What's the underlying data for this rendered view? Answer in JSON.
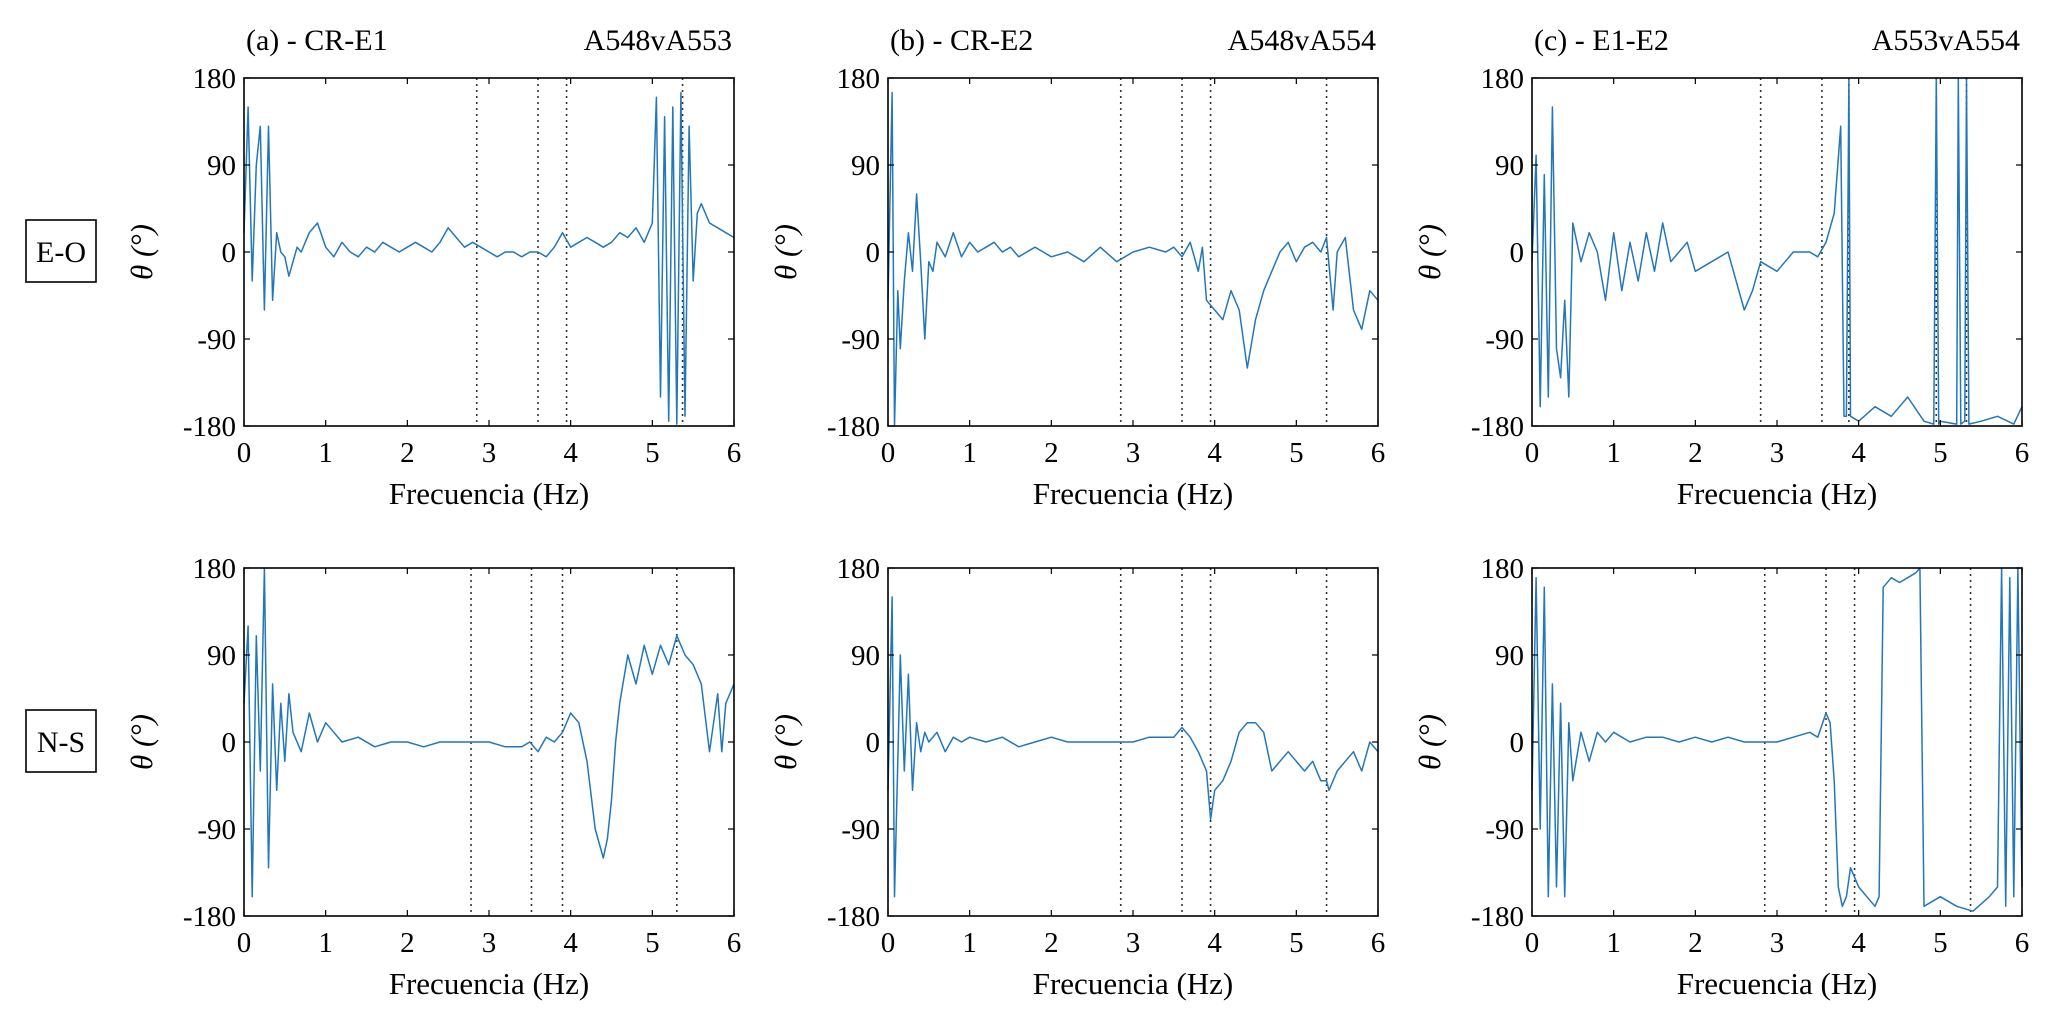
{
  "figure": {
    "row_labels": [
      "E-O",
      "N-S"
    ],
    "series_color": "#2277bb",
    "panels_titles": [
      {
        "left": "(a) - CR-E1",
        "right": "A548vA553"
      },
      {
        "left": "(b) - CR-E2",
        "right": "A548vA554"
      },
      {
        "left": "(c) - E1-E2",
        "right": "A553vA554"
      }
    ]
  },
  "chart_data": [
    {
      "type": "line",
      "panel": "a-EO",
      "title_left": "(a) - CR-E1",
      "title_right": "A548vA553",
      "xlabel": "Frecuencia (Hz)",
      "ylabel": "θ (°)",
      "xlim": [
        0,
        6
      ],
      "ylim": [
        -180,
        180
      ],
      "xticks": [
        0,
        1,
        2,
        3,
        4,
        5,
        6
      ],
      "yticks": [
        180,
        90,
        0,
        -90,
        -180
      ],
      "vlines": [
        2.85,
        3.6,
        3.95,
        5.37
      ],
      "x": [
        0,
        0.05,
        0.1,
        0.15,
        0.2,
        0.25,
        0.3,
        0.35,
        0.4,
        0.45,
        0.5,
        0.55,
        0.6,
        0.65,
        0.7,
        0.8,
        0.9,
        1.0,
        1.1,
        1.2,
        1.3,
        1.4,
        1.5,
        1.6,
        1.7,
        1.8,
        1.9,
        2.0,
        2.1,
        2.2,
        2.3,
        2.4,
        2.5,
        2.6,
        2.7,
        2.8,
        2.9,
        3.0,
        3.1,
        3.2,
        3.3,
        3.4,
        3.5,
        3.6,
        3.7,
        3.8,
        3.9,
        4.0,
        4.1,
        4.2,
        4.3,
        4.4,
        4.5,
        4.6,
        4.7,
        4.8,
        4.9,
        5.0,
        5.05,
        5.1,
        5.15,
        5.2,
        5.25,
        5.3,
        5.35,
        5.4,
        5.45,
        5.5,
        5.55,
        5.6,
        5.7,
        5.8,
        5.9,
        6.0
      ],
      "y": [
        20,
        150,
        -30,
        90,
        130,
        -60,
        130,
        -50,
        20,
        0,
        -5,
        -25,
        -10,
        5,
        0,
        20,
        30,
        5,
        -5,
        10,
        0,
        -5,
        5,
        0,
        10,
        5,
        0,
        5,
        10,
        5,
        0,
        10,
        25,
        15,
        5,
        10,
        5,
        0,
        -5,
        0,
        0,
        -5,
        0,
        0,
        -5,
        5,
        20,
        5,
        10,
        15,
        10,
        5,
        10,
        20,
        15,
        25,
        10,
        30,
        160,
        -150,
        140,
        -175,
        150,
        -178,
        165,
        -170,
        130,
        -30,
        40,
        50,
        30,
        25,
        20,
        15
      ]
    },
    {
      "type": "line",
      "panel": "b-EO",
      "title_left": "(b) - CR-E2",
      "title_right": "A548vA554",
      "xlabel": "Frecuencia (Hz)",
      "ylabel": "θ (°)",
      "xlim": [
        0,
        6
      ],
      "ylim": [
        -180,
        180
      ],
      "xticks": [
        0,
        1,
        2,
        3,
        4,
        5,
        6
      ],
      "yticks": [
        180,
        90,
        0,
        -90,
        -180
      ],
      "vlines": [
        2.85,
        3.6,
        3.95,
        5.37
      ],
      "x": [
        0,
        0.05,
        0.08,
        0.12,
        0.15,
        0.2,
        0.25,
        0.3,
        0.35,
        0.4,
        0.45,
        0.5,
        0.55,
        0.6,
        0.7,
        0.8,
        0.9,
        1.0,
        1.1,
        1.2,
        1.3,
        1.4,
        1.5,
        1.6,
        1.7,
        1.8,
        1.9,
        2.0,
        2.2,
        2.4,
        2.6,
        2.8,
        3.0,
        3.2,
        3.4,
        3.5,
        3.6,
        3.7,
        3.8,
        3.85,
        3.9,
        4.0,
        4.1,
        4.2,
        4.3,
        4.4,
        4.5,
        4.6,
        4.7,
        4.8,
        4.9,
        5.0,
        5.1,
        5.2,
        5.3,
        5.37,
        5.45,
        5.5,
        5.6,
        5.7,
        5.8,
        5.9,
        6.0
      ],
      "y": [
        -50,
        165,
        -180,
        -40,
        -100,
        -30,
        20,
        -20,
        60,
        -10,
        -90,
        -10,
        -20,
        10,
        -5,
        20,
        -5,
        10,
        0,
        5,
        10,
        0,
        5,
        -5,
        0,
        5,
        0,
        -5,
        0,
        -10,
        5,
        -10,
        0,
        5,
        0,
        5,
        -5,
        10,
        -20,
        5,
        -50,
        -60,
        -70,
        -40,
        -60,
        -120,
        -70,
        -40,
        -20,
        0,
        10,
        -10,
        5,
        10,
        0,
        15,
        -60,
        0,
        15,
        -60,
        -80,
        -40,
        -50
      ]
    },
    {
      "type": "line",
      "panel": "c-EO",
      "title_left": "(c) - E1-E2",
      "title_right": "A553vA554",
      "xlabel": "Frecuencia (Hz)",
      "ylabel": "θ (°)",
      "xlim": [
        0,
        6
      ],
      "ylim": [
        -180,
        180
      ],
      "xticks": [
        0,
        1,
        2,
        3,
        4,
        5,
        6
      ],
      "yticks": [
        180,
        90,
        0,
        -90,
        -180
      ],
      "vlines": [
        2.8,
        3.55,
        3.88,
        4.95,
        5.32
      ],
      "x": [
        0,
        0.05,
        0.1,
        0.15,
        0.2,
        0.25,
        0.3,
        0.35,
        0.4,
        0.45,
        0.5,
        0.6,
        0.7,
        0.8,
        0.9,
        1.0,
        1.1,
        1.2,
        1.3,
        1.4,
        1.5,
        1.6,
        1.7,
        1.8,
        1.9,
        2.0,
        2.2,
        2.4,
        2.6,
        2.7,
        2.8,
        3.0,
        3.2,
        3.4,
        3.5,
        3.6,
        3.7,
        3.78,
        3.82,
        3.85,
        3.88,
        3.9,
        4.0,
        4.2,
        4.4,
        4.6,
        4.8,
        4.92,
        4.95,
        4.98,
        5.0,
        5.2,
        5.22,
        5.25,
        5.3,
        5.32,
        5.35,
        5.5,
        5.7,
        5.9,
        6.0
      ],
      "y": [
        -10,
        100,
        -160,
        80,
        -150,
        150,
        -100,
        -130,
        -50,
        -150,
        30,
        -10,
        20,
        0,
        -50,
        20,
        -40,
        10,
        -30,
        20,
        -20,
        30,
        -10,
        0,
        10,
        -20,
        -10,
        0,
        -60,
        -40,
        -10,
        -20,
        0,
        0,
        -5,
        10,
        40,
        130,
        -170,
        -170,
        180,
        -170,
        -175,
        -160,
        -170,
        -150,
        -175,
        -178,
        180,
        -178,
        -175,
        -178,
        180,
        -178,
        -175,
        180,
        -178,
        -175,
        -170,
        -178,
        -160
      ]
    },
    {
      "type": "line",
      "panel": "a-NS",
      "title_left": "",
      "title_right": "",
      "xlabel": "Frecuencia (Hz)",
      "ylabel": "θ (°)",
      "xlim": [
        0,
        6
      ],
      "ylim": [
        -180,
        180
      ],
      "xticks": [
        0,
        1,
        2,
        3,
        4,
        5,
        6
      ],
      "yticks": [
        180,
        90,
        0,
        -90,
        -180
      ],
      "vlines": [
        2.78,
        3.52,
        3.9,
        5.3
      ],
      "x": [
        0,
        0.05,
        0.1,
        0.15,
        0.2,
        0.25,
        0.3,
        0.35,
        0.4,
        0.45,
        0.5,
        0.55,
        0.6,
        0.7,
        0.8,
        0.9,
        1.0,
        1.1,
        1.2,
        1.4,
        1.6,
        1.8,
        2.0,
        2.2,
        2.4,
        2.6,
        2.8,
        3.0,
        3.2,
        3.4,
        3.5,
        3.6,
        3.7,
        3.8,
        3.9,
        4.0,
        4.1,
        4.2,
        4.3,
        4.4,
        4.45,
        4.5,
        4.55,
        4.6,
        4.7,
        4.8,
        4.9,
        5.0,
        5.1,
        5.2,
        5.3,
        5.4,
        5.5,
        5.6,
        5.7,
        5.8,
        5.85,
        5.9,
        6.0
      ],
      "y": [
        40,
        120,
        -160,
        110,
        -30,
        180,
        -130,
        60,
        -50,
        40,
        -20,
        50,
        10,
        -10,
        30,
        0,
        20,
        10,
        0,
        5,
        -5,
        0,
        0,
        -5,
        0,
        0,
        0,
        0,
        -5,
        -5,
        0,
        -10,
        5,
        0,
        10,
        30,
        20,
        -20,
        -90,
        -120,
        -100,
        -60,
        0,
        40,
        90,
        60,
        100,
        70,
        100,
        80,
        110,
        90,
        80,
        60,
        -10,
        50,
        -10,
        40,
        60
      ]
    },
    {
      "type": "line",
      "panel": "b-NS",
      "title_left": "",
      "title_right": "",
      "xlabel": "Frecuencia (Hz)",
      "ylabel": "θ (°)",
      "xlim": [
        0,
        6
      ],
      "ylim": [
        -180,
        180
      ],
      "xticks": [
        0,
        1,
        2,
        3,
        4,
        5,
        6
      ],
      "yticks": [
        180,
        90,
        0,
        -90,
        -180
      ],
      "vlines": [
        2.85,
        3.6,
        3.95,
        5.37
      ],
      "x": [
        0,
        0.05,
        0.08,
        0.12,
        0.15,
        0.2,
        0.25,
        0.3,
        0.35,
        0.4,
        0.45,
        0.5,
        0.6,
        0.7,
        0.8,
        0.9,
        1.0,
        1.2,
        1.4,
        1.6,
        1.8,
        2.0,
        2.2,
        2.4,
        2.6,
        2.8,
        3.0,
        3.2,
        3.4,
        3.5,
        3.6,
        3.7,
        3.8,
        3.9,
        3.95,
        4.0,
        4.1,
        4.2,
        4.3,
        4.4,
        4.5,
        4.6,
        4.7,
        4.8,
        4.9,
        5.0,
        5.1,
        5.2,
        5.3,
        5.37,
        5.4,
        5.5,
        5.6,
        5.7,
        5.8,
        5.9,
        6.0
      ],
      "y": [
        -50,
        150,
        -160,
        -20,
        90,
        -30,
        70,
        -50,
        20,
        -10,
        10,
        0,
        10,
        -10,
        5,
        0,
        5,
        0,
        5,
        -5,
        0,
        5,
        0,
        0,
        0,
        0,
        0,
        5,
        5,
        5,
        15,
        5,
        -10,
        -30,
        -80,
        -50,
        -40,
        -20,
        10,
        20,
        20,
        10,
        -30,
        -20,
        -10,
        -20,
        -30,
        -20,
        -40,
        -40,
        -50,
        -30,
        -20,
        -10,
        -30,
        0,
        -10
      ]
    },
    {
      "type": "line",
      "panel": "c-NS",
      "title_left": "",
      "title_right": "",
      "xlabel": "Frecuencia (Hz)",
      "ylabel": "θ (°)",
      "xlim": [
        0,
        6
      ],
      "ylim": [
        -180,
        180
      ],
      "xticks": [
        0,
        1,
        2,
        3,
        4,
        5,
        6
      ],
      "yticks": [
        180,
        90,
        0,
        -90,
        -180
      ],
      "vlines": [
        2.85,
        3.6,
        3.95,
        5.37
      ],
      "x": [
        0,
        0.05,
        0.1,
        0.15,
        0.2,
        0.25,
        0.3,
        0.35,
        0.4,
        0.45,
        0.5,
        0.6,
        0.7,
        0.8,
        0.9,
        1.0,
        1.2,
        1.4,
        1.6,
        1.8,
        2.0,
        2.2,
        2.4,
        2.6,
        2.8,
        3.0,
        3.2,
        3.4,
        3.5,
        3.6,
        3.65,
        3.7,
        3.75,
        3.8,
        3.85,
        3.9,
        4.0,
        4.1,
        4.2,
        4.25,
        4.3,
        4.4,
        4.5,
        4.6,
        4.7,
        4.75,
        4.8,
        5.0,
        5.2,
        5.4,
        5.6,
        5.7,
        5.75,
        5.8,
        5.85,
        5.9,
        5.95,
        6.0
      ],
      "y": [
        -50,
        170,
        -90,
        160,
        -160,
        60,
        -150,
        40,
        -160,
        20,
        -40,
        10,
        -20,
        10,
        0,
        10,
        0,
        5,
        5,
        0,
        5,
        0,
        5,
        0,
        0,
        0,
        5,
        10,
        5,
        30,
        20,
        -40,
        -150,
        -170,
        -160,
        -130,
        -150,
        -160,
        -170,
        -160,
        160,
        170,
        165,
        170,
        175,
        180,
        -170,
        -160,
        -170,
        -175,
        -160,
        -150,
        180,
        -170,
        170,
        -160,
        180,
        -150
      ]
    }
  ]
}
